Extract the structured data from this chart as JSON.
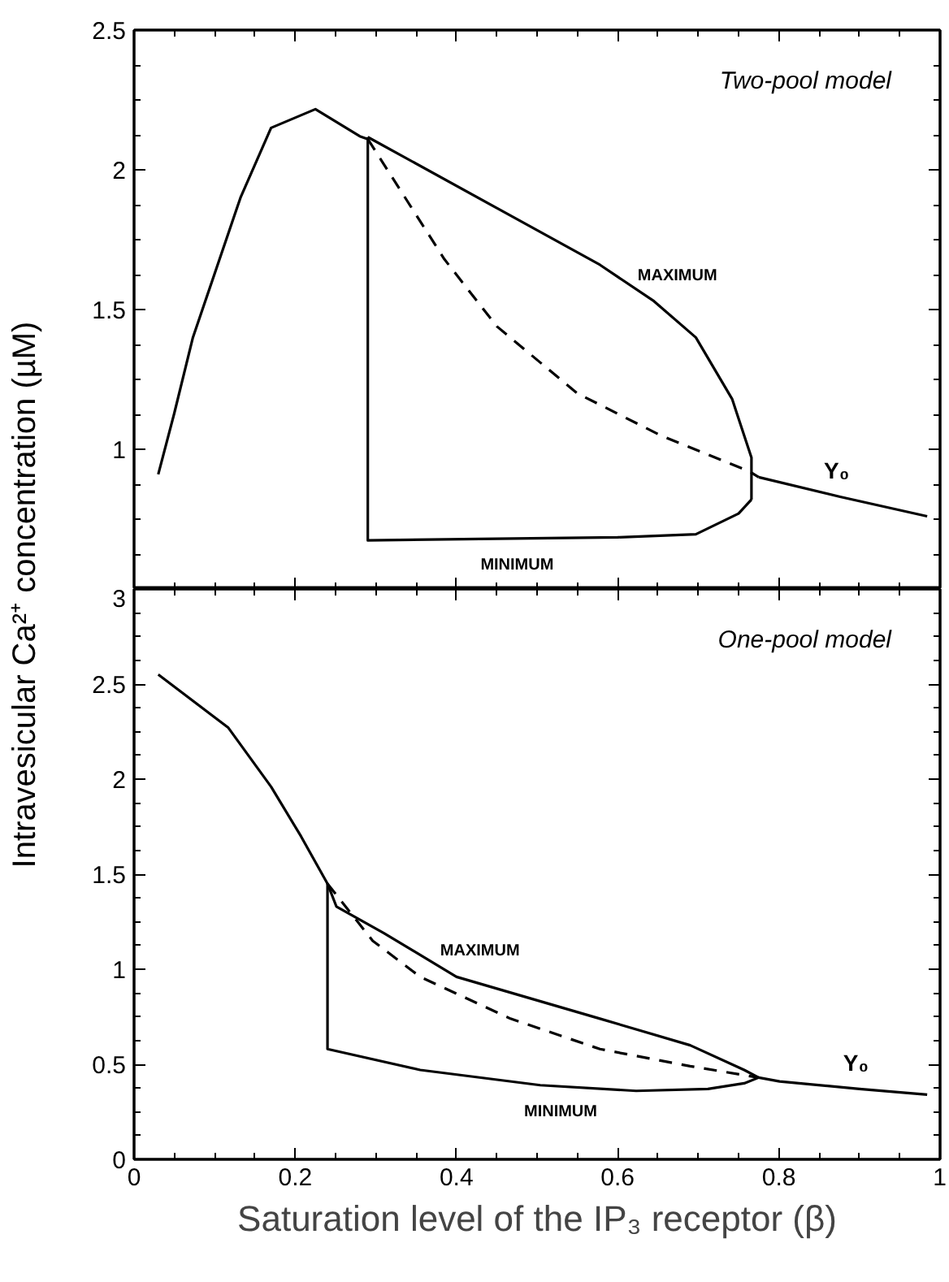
{
  "chart_data": [
    {
      "type": "line",
      "ylabel": "Intravesicular Ca²⁺ concentration (µM)",
      "annotations": [
        "Two-pool model"
      ],
      "xlim": [
        0,
        1
      ],
      "xticks": [
        0,
        0.2,
        0.4,
        0.6,
        0.8,
        1
      ],
      "ylim": [
        0.5,
        2.5
      ],
      "yticks": [
        1,
        1.5,
        2,
        2.5
      ],
      "tick_labels": "y",
      "grid": false,
      "series": [
        {
          "name": "Y₀",
          "color": "#000000",
          "line_style": "solid",
          "x": [
            0.03,
            0.05,
            0.073,
            0.132,
            0.17,
            0.225,
            0.28,
            0.29,
            null,
            0.775,
            0.876,
            0.984
          ],
          "values": [
            0.91,
            1.13,
            1.4,
            1.9,
            2.15,
            2.217,
            2.12,
            2.11,
            null,
            0.9,
            0.83,
            0.76
          ]
        },
        {
          "color": "#000000",
          "line_style": "dashed",
          "x": [
            0.29,
            0.385,
            0.45,
            0.55,
            0.653,
            0.764,
            0.775
          ],
          "values": [
            2.11,
            1.68,
            1.44,
            1.2,
            1.05,
            0.92,
            0.9
          ]
        },
        {
          "name": "MAXIMUM",
          "color": "#000000",
          "line_style": "solid",
          "x": [
            0.29,
            0.452,
            0.578,
            0.645,
            0.697,
            0.742,
            0.766,
            0.766
          ],
          "values": [
            2.117,
            1.86,
            1.66,
            1.53,
            1.4,
            1.18,
            0.97,
            0.82
          ]
        },
        {
          "name": "MINIMUM",
          "color": "#000000",
          "line_style": "solid",
          "x": [
            0.29,
            0.29,
            0.45,
            0.6,
            0.697,
            0.75,
            0.766
          ],
          "values": [
            2.117,
            0.674,
            0.68,
            0.685,
            0.696,
            0.77,
            0.82
          ]
        }
      ]
    },
    {
      "type": "line",
      "xlabel": "Saturation level of the IP₃ receptor (β)",
      "annotations": [
        "One-pool model"
      ],
      "xlim": [
        0,
        1
      ],
      "xticks": [
        0,
        0.2,
        0.4,
        0.6,
        0.8,
        1
      ],
      "ylim": [
        0,
        3
      ],
      "yticks": [
        0,
        0.5,
        1,
        1.5,
        2,
        2.5,
        3
      ],
      "grid": false,
      "series": [
        {
          "name": "Y₀",
          "color": "#000000",
          "line_style": "solid",
          "x": [
            0.03,
            0.117,
            0.17,
            0.207,
            0.24,
            null,
            0.775,
            0.801,
            0.9,
            0.984
          ],
          "values": [
            2.55,
            2.27,
            1.96,
            1.7,
            1.45,
            null,
            0.43,
            0.41,
            0.37,
            0.34
          ]
        },
        {
          "color": "#000000",
          "line_style": "dashed",
          "x": [
            0.24,
            0.296,
            0.355,
            0.467,
            0.578,
            0.69,
            0.775
          ],
          "values": [
            1.45,
            1.15,
            0.96,
            0.74,
            0.58,
            0.49,
            0.43
          ]
        },
        {
          "name": "MAXIMUM",
          "color": "#000000",
          "line_style": "solid",
          "x": [
            0.24,
            0.251,
            0.31,
            0.4,
            0.578,
            0.69,
            0.757,
            0.775
          ],
          "values": [
            1.45,
            1.33,
            1.19,
            0.96,
            0.74,
            0.6,
            0.47,
            0.43
          ]
        },
        {
          "name": "MINIMUM",
          "color": "#000000",
          "line_style": "solid",
          "x": [
            0.24,
            0.24,
            0.355,
            0.504,
            0.623,
            0.712,
            0.757,
            0.775
          ],
          "values": [
            1.45,
            0.58,
            0.47,
            0.39,
            0.36,
            0.37,
            0.4,
            0.43
          ]
        }
      ]
    }
  ]
}
